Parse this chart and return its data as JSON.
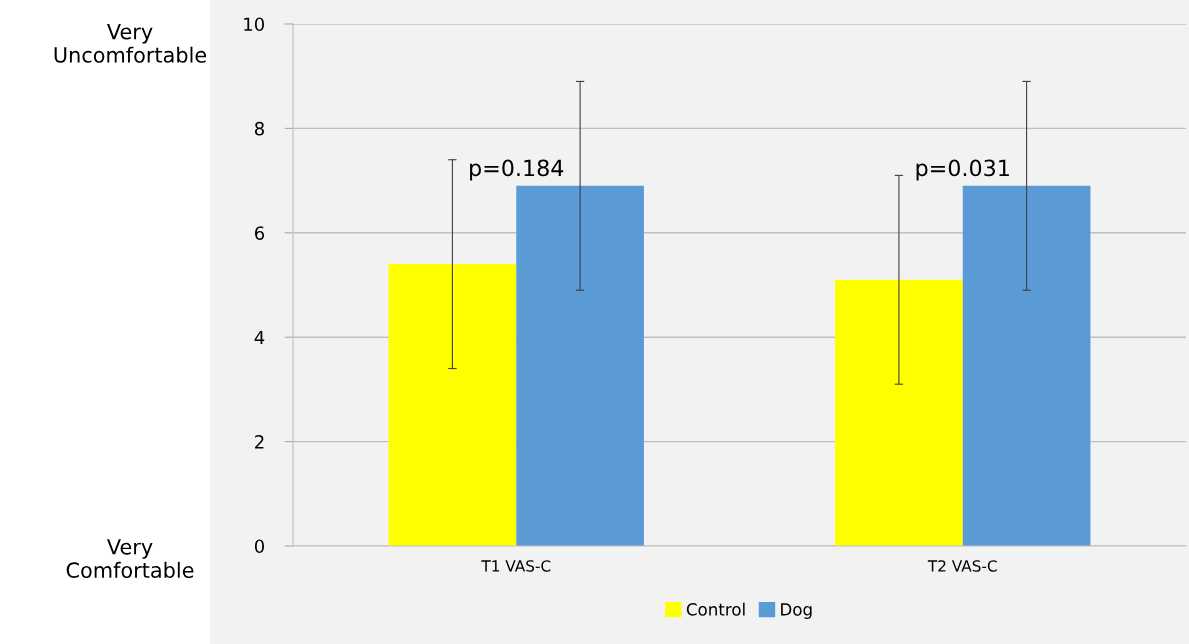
{
  "chart_data": {
    "type": "bar",
    "categories": [
      "T1 VAS-C",
      "T2 VAS-C"
    ],
    "series": [
      {
        "name": "Control",
        "color": "#ffff00",
        "values": [
          5.4,
          5.1
        ],
        "errors": [
          2.0,
          2.0
        ]
      },
      {
        "name": "Dog",
        "color": "#5b9bd5",
        "values": [
          6.9,
          6.9
        ],
        "errors": [
          2.0,
          2.0
        ]
      }
    ],
    "ylim": [
      0,
      10
    ],
    "yticks": [
      0,
      2,
      4,
      6,
      8,
      10
    ],
    "grid": "y",
    "legend": "bottom",
    "annotations": [
      "p=0.184",
      "p=0.031",
      "Very\nUncomfortable",
      "Very\nComfortable"
    ]
  }
}
